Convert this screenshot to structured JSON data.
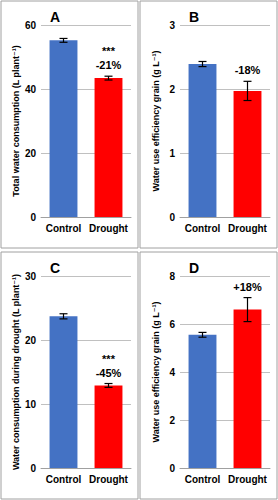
{
  "chart_data": [
    {
      "type": "bar",
      "title": "A",
      "y_label": "Total water consumption (L plant⁻¹)",
      "categories": [
        "Control",
        "Drought"
      ],
      "values": [
        55.2,
        43.4
      ],
      "errors": [
        0.6,
        0.6
      ],
      "colors": [
        "#4472c4",
        "#ff0000"
      ],
      "ylim": [
        0,
        60
      ],
      "yticks": [
        0,
        20,
        40,
        60
      ],
      "grid": true,
      "annotations": [
        "***",
        "-21%"
      ]
    },
    {
      "type": "bar",
      "title": "B",
      "y_label": "Water use efficiency grain (g L⁻¹)",
      "categories": [
        "Control",
        "Drought"
      ],
      "values": [
        2.39,
        1.97
      ],
      "errors": [
        0.04,
        0.15
      ],
      "colors": [
        "#4472c4",
        "#ff0000"
      ],
      "ylim": [
        0,
        3
      ],
      "yticks": [
        0,
        1,
        2,
        3
      ],
      "grid": true,
      "annotations": [
        "-18%"
      ]
    },
    {
      "type": "bar",
      "title": "C",
      "y_label": "Water consumption during drought (L plant⁻¹)",
      "categories": [
        "Control",
        "Drought"
      ],
      "values": [
        23.7,
        12.9
      ],
      "errors": [
        0.4,
        0.3
      ],
      "colors": [
        "#4472c4",
        "#ff0000"
      ],
      "ylim": [
        0,
        30
      ],
      "yticks": [
        0,
        10,
        20,
        30
      ],
      "grid": true,
      "annotations": [
        "***",
        "-45%"
      ]
    },
    {
      "type": "bar",
      "title": "D",
      "y_label": "Water use efficiency grain (g L⁻¹)",
      "categories": [
        "Control",
        "Drought"
      ],
      "values": [
        5.55,
        6.6
      ],
      "errors": [
        0.1,
        0.5
      ],
      "colors": [
        "#4472c4",
        "#ff0000"
      ],
      "ylim": [
        0,
        8
      ],
      "yticks": [
        0,
        2,
        4,
        6,
        8
      ],
      "grid": true,
      "annotations": [
        "+18%"
      ]
    }
  ]
}
